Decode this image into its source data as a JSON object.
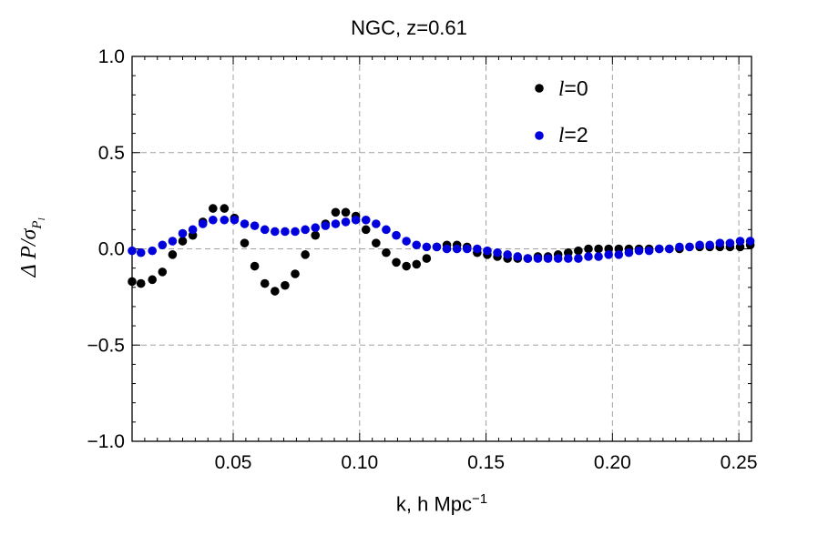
{
  "chart_data": {
    "type": "scatter",
    "title": "NGC, z=0.61",
    "xlabel": "k, h Mpc",
    "xlabel_superscript": "−1",
    "ylabel": "Δ P",
    "xlim": [
      0.01,
      0.255
    ],
    "ylim": [
      -1.0,
      1.0
    ],
    "xticks": [
      0.05,
      0.1,
      0.15,
      0.2,
      0.25
    ],
    "xtick_labels": [
      "0.05",
      "0.10",
      "0.15",
      "0.20",
      "0.25"
    ],
    "yticks": [
      -1.0,
      -0.5,
      0.0,
      0.5,
      1.0
    ],
    "ytick_labels": [
      "−1.0",
      "−0.5",
      "0.0",
      "0.5",
      "1.0"
    ],
    "grid": true,
    "legend_position": "top-right",
    "legend_labels": [
      "=0",
      "=2"
    ],
    "series": [
      {
        "name": "l=0",
        "color": "#000000",
        "x": [
          0.01,
          0.0135,
          0.018,
          0.022,
          0.026,
          0.03,
          0.034,
          0.038,
          0.042,
          0.0465,
          0.0505,
          0.0545,
          0.0585,
          0.0625,
          0.0665,
          0.0705,
          0.0745,
          0.0785,
          0.0825,
          0.0865,
          0.0905,
          0.0945,
          0.0985,
          0.1025,
          0.1065,
          0.1105,
          0.1145,
          0.1185,
          0.1225,
          0.1265,
          0.1305,
          0.1345,
          0.1385,
          0.1425,
          0.1465,
          0.1505,
          0.1545,
          0.1585,
          0.1625,
          0.1665,
          0.1705,
          0.1745,
          0.1785,
          0.1825,
          0.1865,
          0.1905,
          0.1945,
          0.1985,
          0.2025,
          0.2065,
          0.2105,
          0.2145,
          0.2185,
          0.2225,
          0.2265,
          0.2305,
          0.2345,
          0.2385,
          0.2425,
          0.2465,
          0.2505,
          0.2545
        ],
        "y": [
          -0.17,
          -0.18,
          -0.16,
          -0.12,
          -0.03,
          0.04,
          0.07,
          0.14,
          0.21,
          0.21,
          0.16,
          0.03,
          -0.09,
          -0.18,
          -0.22,
          -0.19,
          -0.13,
          -0.03,
          0.07,
          0.13,
          0.19,
          0.19,
          0.17,
          0.1,
          0.03,
          -0.02,
          -0.07,
          -0.09,
          -0.08,
          -0.05,
          0.01,
          0.02,
          0.02,
          0.01,
          -0.02,
          -0.03,
          -0.04,
          -0.05,
          -0.05,
          -0.05,
          -0.04,
          -0.04,
          -0.03,
          -0.02,
          -0.01,
          0.0,
          0.0,
          0.0,
          0.0,
          0.0,
          0.0,
          0.0,
          0.0,
          0.0,
          0.0,
          0.01,
          0.01,
          0.01,
          0.01,
          0.01,
          0.01,
          0.02
        ]
      },
      {
        "name": "l=2",
        "color": "#0000dd",
        "x": [
          0.01,
          0.0135,
          0.018,
          0.022,
          0.026,
          0.03,
          0.034,
          0.038,
          0.042,
          0.0465,
          0.0505,
          0.0545,
          0.0585,
          0.0625,
          0.0665,
          0.0705,
          0.0745,
          0.0785,
          0.0825,
          0.0865,
          0.0905,
          0.0945,
          0.0985,
          0.1025,
          0.1065,
          0.1105,
          0.1145,
          0.1185,
          0.1225,
          0.1265,
          0.1305,
          0.1345,
          0.1385,
          0.1425,
          0.1465,
          0.1505,
          0.1545,
          0.1585,
          0.1625,
          0.1665,
          0.1705,
          0.1745,
          0.1785,
          0.1825,
          0.1865,
          0.1905,
          0.1945,
          0.1985,
          0.2025,
          0.2065,
          0.2105,
          0.2145,
          0.2185,
          0.2225,
          0.2265,
          0.2305,
          0.2345,
          0.2385,
          0.2425,
          0.2465,
          0.2505,
          0.2545
        ],
        "y": [
          -0.01,
          -0.02,
          -0.01,
          0.02,
          0.04,
          0.08,
          0.1,
          0.13,
          0.15,
          0.15,
          0.15,
          0.13,
          0.12,
          0.1,
          0.09,
          0.09,
          0.09,
          0.1,
          0.11,
          0.12,
          0.13,
          0.14,
          0.15,
          0.15,
          0.13,
          0.1,
          0.07,
          0.04,
          0.02,
          0.01,
          0.01,
          0.0,
          0.0,
          0.0,
          0.0,
          -0.01,
          -0.02,
          -0.03,
          -0.04,
          -0.05,
          -0.05,
          -0.05,
          -0.05,
          -0.05,
          -0.05,
          -0.04,
          -0.04,
          -0.03,
          -0.03,
          -0.02,
          -0.01,
          -0.01,
          0.0,
          0.0,
          0.01,
          0.01,
          0.02,
          0.02,
          0.03,
          0.03,
          0.04,
          0.04
        ]
      }
    ]
  }
}
